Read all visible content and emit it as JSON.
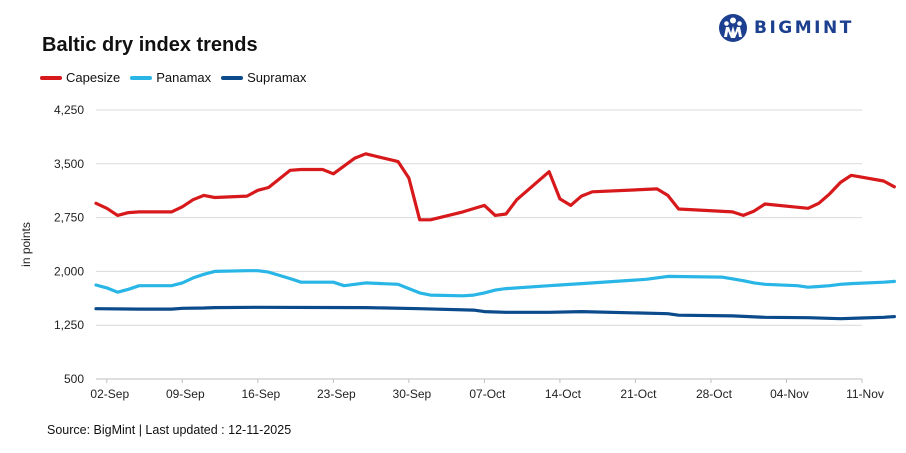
{
  "header": {
    "title": "Baltic dry index trends",
    "brand": "BIGMINT"
  },
  "footer": {
    "source": "Source: BigMint | Last updated : 12-11-2025"
  },
  "colors": {
    "capesize": "#d7191c",
    "panamax": "#29b6e6",
    "supramax": "#0b4a8b",
    "brand": "#1c3f8f"
  },
  "chart_data": {
    "type": "line",
    "title": "Baltic dry index trends",
    "ylabel": "in points",
    "xlabel": "",
    "ylim": [
      500,
      4250
    ],
    "yticks": [
      500,
      1250,
      2000,
      2750,
      3500,
      4250
    ],
    "ytick_labels": [
      "500",
      "1,250",
      "2,000",
      "2,750",
      "3,500",
      "4,250"
    ],
    "xlim": [
      "2025-09-01",
      "2025-11-11"
    ],
    "xticks": [
      "2025-09-02",
      "2025-09-09",
      "2025-09-16",
      "2025-09-23",
      "2025-09-30",
      "2025-10-07",
      "2025-10-14",
      "2025-10-21",
      "2025-10-28",
      "2025-11-04",
      "2025-11-11"
    ],
    "xtick_labels": [
      "02-Sep",
      "09-Sep",
      "16-Sep",
      "23-Sep",
      "30-Sep",
      "07-Oct",
      "14-Oct",
      "21-Oct",
      "28-Oct",
      "04-Nov",
      "11-Nov"
    ],
    "grid": true,
    "legend_position": "top-left",
    "series": [
      {
        "name": "Capesize",
        "points": [
          [
            "2025-09-01",
            2950
          ],
          [
            "2025-09-02",
            2880
          ],
          [
            "2025-09-03",
            2780
          ],
          [
            "2025-09-04",
            2820
          ],
          [
            "2025-09-05",
            2830
          ],
          [
            "2025-09-08",
            2830
          ],
          [
            "2025-09-09",
            2900
          ],
          [
            "2025-09-10",
            3000
          ],
          [
            "2025-09-11",
            3060
          ],
          [
            "2025-09-12",
            3030
          ],
          [
            "2025-09-15",
            3050
          ],
          [
            "2025-09-16",
            3130
          ],
          [
            "2025-09-17",
            3170
          ],
          [
            "2025-09-18",
            3290
          ],
          [
            "2025-09-19",
            3410
          ],
          [
            "2025-09-20",
            3420
          ],
          [
            "2025-09-22",
            3420
          ],
          [
            "2025-09-23",
            3360
          ],
          [
            "2025-09-25",
            3580
          ],
          [
            "2025-09-26",
            3640
          ],
          [
            "2025-09-29",
            3530
          ],
          [
            "2025-09-30",
            3300
          ],
          [
            "2025-10-01",
            2720
          ],
          [
            "2025-10-02",
            2720
          ],
          [
            "2025-10-05",
            2830
          ],
          [
            "2025-10-07",
            2920
          ],
          [
            "2025-10-08",
            2780
          ],
          [
            "2025-10-09",
            2800
          ],
          [
            "2025-10-10",
            3000
          ],
          [
            "2025-10-13",
            3390
          ],
          [
            "2025-10-14",
            3010
          ],
          [
            "2025-10-15",
            2920
          ],
          [
            "2025-10-16",
            3050
          ],
          [
            "2025-10-17",
            3110
          ],
          [
            "2025-10-23",
            3150
          ],
          [
            "2025-10-24",
            3060
          ],
          [
            "2025-10-25",
            2870
          ],
          [
            "2025-10-30",
            2830
          ],
          [
            "2025-10-31",
            2780
          ],
          [
            "2025-11-01",
            2840
          ],
          [
            "2025-11-02",
            2940
          ],
          [
            "2025-11-06",
            2880
          ],
          [
            "2025-11-07",
            2950
          ],
          [
            "2025-11-08",
            3080
          ],
          [
            "2025-11-09",
            3240
          ],
          [
            "2025-11-10",
            3340
          ],
          [
            "2025-11-13",
            3260
          ],
          [
            "2025-11-14",
            3180
          ]
        ]
      },
      {
        "name": "Panamax",
        "points": [
          [
            "2025-09-01",
            1810
          ],
          [
            "2025-09-02",
            1770
          ],
          [
            "2025-09-03",
            1710
          ],
          [
            "2025-09-04",
            1750
          ],
          [
            "2025-09-05",
            1800
          ],
          [
            "2025-09-08",
            1800
          ],
          [
            "2025-09-09",
            1840
          ],
          [
            "2025-09-10",
            1910
          ],
          [
            "2025-09-11",
            1960
          ],
          [
            "2025-09-12",
            2000
          ],
          [
            "2025-09-15",
            2010
          ],
          [
            "2025-09-16",
            2010
          ],
          [
            "2025-09-17",
            1990
          ],
          [
            "2025-09-19",
            1900
          ],
          [
            "2025-09-20",
            1850
          ],
          [
            "2025-09-23",
            1850
          ],
          [
            "2025-09-24",
            1800
          ],
          [
            "2025-09-26",
            1840
          ],
          [
            "2025-09-29",
            1820
          ],
          [
            "2025-09-30",
            1760
          ],
          [
            "2025-10-01",
            1700
          ],
          [
            "2025-10-02",
            1670
          ],
          [
            "2025-10-05",
            1660
          ],
          [
            "2025-10-06",
            1670
          ],
          [
            "2025-10-07",
            1700
          ],
          [
            "2025-10-08",
            1740
          ],
          [
            "2025-10-09",
            1760
          ],
          [
            "2025-10-13",
            1800
          ],
          [
            "2025-10-14",
            1810
          ],
          [
            "2025-10-16",
            1830
          ],
          [
            "2025-10-22",
            1890
          ],
          [
            "2025-10-24",
            1930
          ],
          [
            "2025-10-29",
            1920
          ],
          [
            "2025-10-31",
            1870
          ],
          [
            "2025-11-01",
            1840
          ],
          [
            "2025-11-02",
            1820
          ],
          [
            "2025-11-05",
            1800
          ],
          [
            "2025-11-06",
            1780
          ],
          [
            "2025-11-07",
            1790
          ],
          [
            "2025-11-08",
            1800
          ],
          [
            "2025-11-09",
            1820
          ],
          [
            "2025-11-10",
            1830
          ],
          [
            "2025-11-13",
            1850
          ],
          [
            "2025-11-14",
            1860
          ]
        ]
      },
      {
        "name": "Supramax",
        "points": [
          [
            "2025-09-01",
            1480
          ],
          [
            "2025-09-05",
            1475
          ],
          [
            "2025-09-08",
            1475
          ],
          [
            "2025-09-09",
            1485
          ],
          [
            "2025-09-11",
            1490
          ],
          [
            "2025-09-12",
            1495
          ],
          [
            "2025-09-16",
            1500
          ],
          [
            "2025-09-26",
            1495
          ],
          [
            "2025-10-01",
            1480
          ],
          [
            "2025-10-06",
            1460
          ],
          [
            "2025-10-07",
            1440
          ],
          [
            "2025-10-09",
            1430
          ],
          [
            "2025-10-13",
            1430
          ],
          [
            "2025-10-16",
            1440
          ],
          [
            "2025-10-24",
            1410
          ],
          [
            "2025-10-25",
            1390
          ],
          [
            "2025-10-30",
            1380
          ],
          [
            "2025-11-02",
            1360
          ],
          [
            "2025-11-06",
            1355
          ],
          [
            "2025-11-09",
            1340
          ],
          [
            "2025-11-11",
            1350
          ],
          [
            "2025-11-13",
            1360
          ],
          [
            "2025-11-14",
            1370
          ]
        ]
      }
    ]
  }
}
